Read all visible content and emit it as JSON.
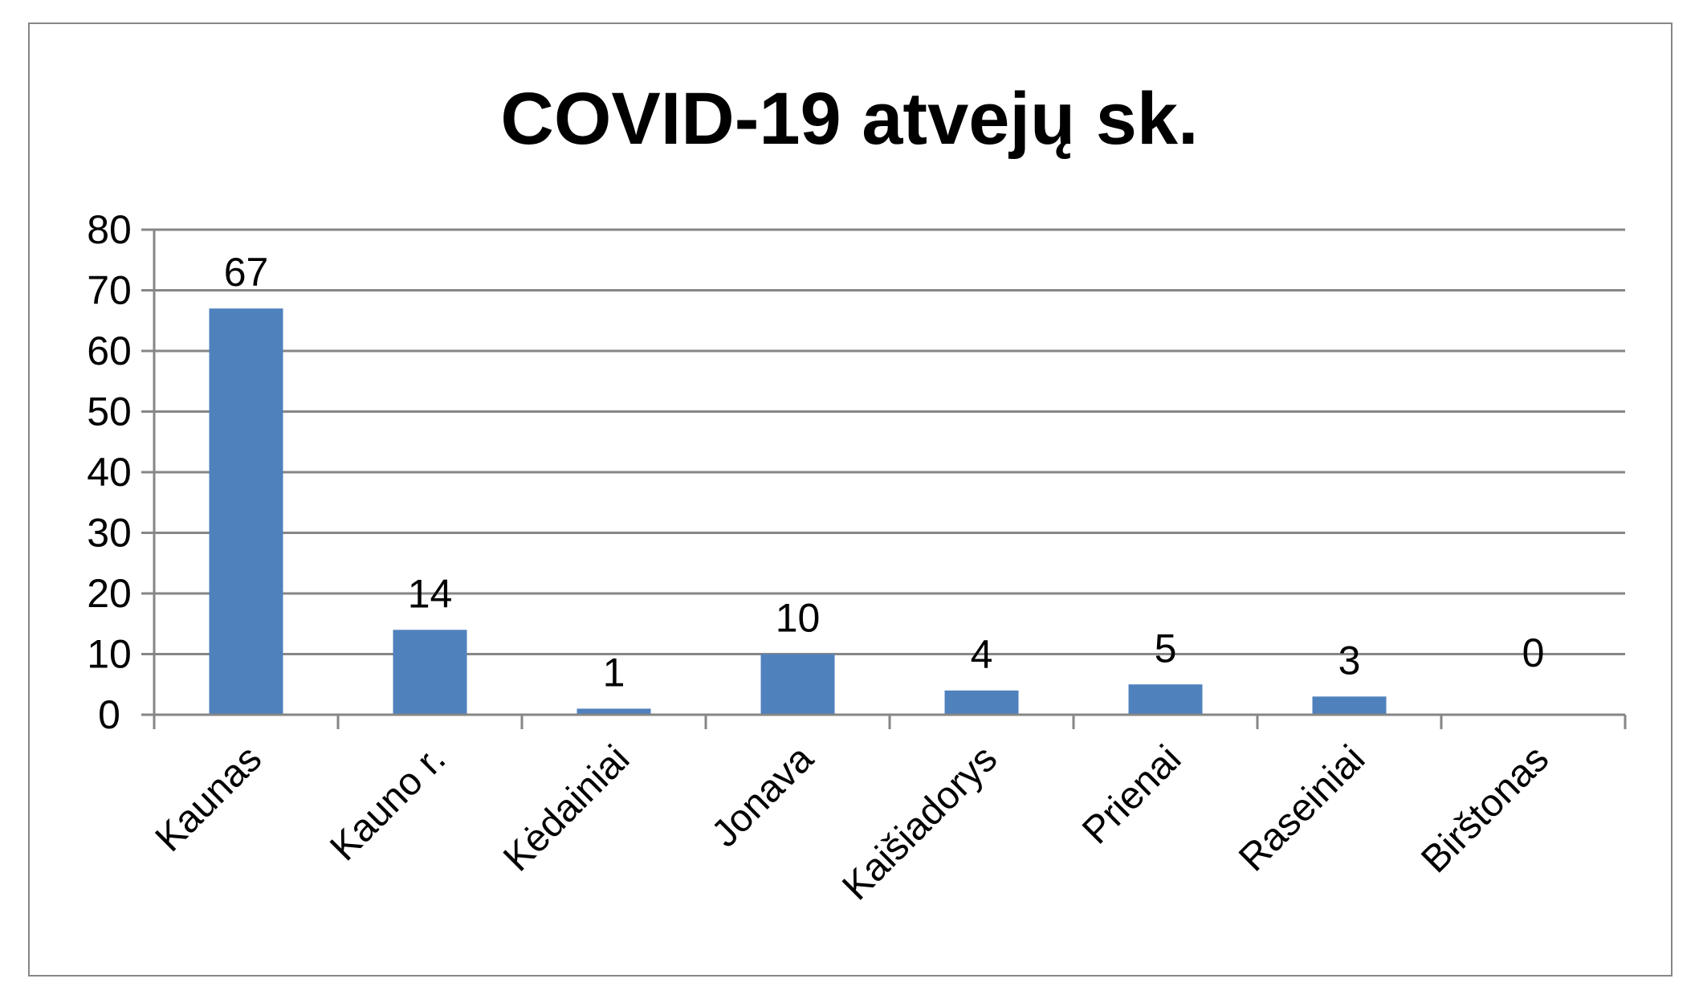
{
  "chart_data": {
    "type": "bar",
    "title": "COVID-19 atvejų sk.",
    "xlabel": "",
    "ylabel": "",
    "categories": [
      "Kaunas",
      "Kauno r.",
      "Kėdainiai",
      "Jonava",
      "Kaišiadorys",
      "Prienai",
      "Raseiniai",
      "Birštonas"
    ],
    "values": [
      67,
      14,
      1,
      10,
      4,
      5,
      3,
      0
    ],
    "ylim": [
      0,
      80
    ],
    "yticks": [
      0,
      10,
      20,
      30,
      40,
      50,
      60,
      70,
      80
    ],
    "grid": true,
    "legend": "none",
    "data_labels": true,
    "bar_color": "#4F81BD",
    "grid_color": "#868686"
  }
}
